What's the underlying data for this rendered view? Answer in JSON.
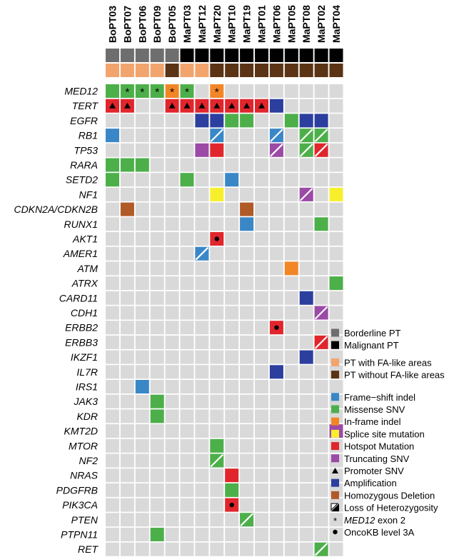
{
  "chart_data": {
    "type": "heatmap",
    "title": "",
    "samples": [
      "BoPT03",
      "BoPT07",
      "BoPT06",
      "BoPT09",
      "BoPT05",
      "MaPT03",
      "MaPT12",
      "MaPT20",
      "MaPT10",
      "MaPT19",
      "MaPT01",
      "MaPT06",
      "MaPT05",
      "MaPT08",
      "MaPT02",
      "MaPT04"
    ],
    "sample_type": [
      "Borderline PT",
      "Borderline PT",
      "Borderline PT",
      "Borderline PT",
      "Borderline PT",
      "Malignant PT",
      "Malignant PT",
      "Malignant PT",
      "Malignant PT",
      "Malignant PT",
      "Malignant PT",
      "Malignant PT",
      "Malignant PT",
      "Malignant PT",
      "Malignant PT",
      "Malignant PT"
    ],
    "fa_status": [
      "PT with FA-like areas",
      "PT with FA-like areas",
      "PT with FA-like areas",
      "PT with FA-like areas",
      "PT without FA-like areas",
      "PT with FA-like areas",
      "PT with FA-like areas",
      "PT without FA-like areas",
      "PT without FA-like areas",
      "PT without FA-like areas",
      "PT without FA-like areas",
      "PT without FA-like areas",
      "PT without FA-like areas",
      "PT without FA-like areas",
      "PT without FA-like areas",
      "PT without FA-like areas"
    ],
    "genes": [
      "MED12",
      "TERT",
      "EGFR",
      "RB1",
      "TP53",
      "RARA",
      "SETD2",
      "NF1",
      "CDKN2A/CDKN2B",
      "RUNX1",
      "AKT1",
      "AMER1",
      "ATM",
      "ATRX",
      "CARD11",
      "CDH1",
      "ERBB2",
      "ERBB3",
      "IKZF1",
      "IL7R",
      "IRS1",
      "JAK3",
      "KDR",
      "KMT2D",
      "MTOR",
      "NF2",
      "NRAS",
      "PDGFRB",
      "PIK3CA",
      "PTEN",
      "PTPN11",
      "RET"
    ],
    "alterations": [
      {
        "gene": "MED12",
        "sample": "BoPT03",
        "type": "Missense SNV"
      },
      {
        "gene": "MED12",
        "sample": "BoPT07",
        "type": "Missense SNV",
        "mark": "*"
      },
      {
        "gene": "MED12",
        "sample": "BoPT06",
        "type": "Missense SNV",
        "mark": "*"
      },
      {
        "gene": "MED12",
        "sample": "BoPT09",
        "type": "Missense SNV",
        "mark": "*"
      },
      {
        "gene": "MED12",
        "sample": "BoPT05",
        "type": "In-frame indel",
        "mark": "*"
      },
      {
        "gene": "MED12",
        "sample": "MaPT03",
        "type": "Missense SNV",
        "mark": "*"
      },
      {
        "gene": "MED12",
        "sample": "MaPT20",
        "type": "In-frame indel",
        "mark": "*"
      },
      {
        "gene": "TERT",
        "sample": "BoPT03",
        "type": "Hotspot Mutation",
        "mark": "▲"
      },
      {
        "gene": "TERT",
        "sample": "BoPT07",
        "type": "Hotspot Mutation",
        "mark": "▲"
      },
      {
        "gene": "TERT",
        "sample": "BoPT05",
        "type": "Hotspot Mutation",
        "mark": "▲"
      },
      {
        "gene": "TERT",
        "sample": "MaPT03",
        "type": "Hotspot Mutation",
        "mark": "▲"
      },
      {
        "gene": "TERT",
        "sample": "MaPT12",
        "type": "Hotspot Mutation",
        "mark": "▲"
      },
      {
        "gene": "TERT",
        "sample": "MaPT20",
        "type": "Hotspot Mutation",
        "mark": "▲"
      },
      {
        "gene": "TERT",
        "sample": "MaPT10",
        "type": "Hotspot Mutation",
        "mark": "▲"
      },
      {
        "gene": "TERT",
        "sample": "MaPT19",
        "type": "Hotspot Mutation",
        "mark": "▲"
      },
      {
        "gene": "TERT",
        "sample": "MaPT01",
        "type": "Hotspot Mutation",
        "mark": "▲"
      },
      {
        "gene": "TERT",
        "sample": "MaPT06",
        "type": "Amplification"
      },
      {
        "gene": "EGFR",
        "sample": "MaPT12",
        "type": "Amplification"
      },
      {
        "gene": "EGFR",
        "sample": "MaPT20",
        "type": "Amplification"
      },
      {
        "gene": "EGFR",
        "sample": "MaPT10",
        "type": "Missense SNV"
      },
      {
        "gene": "EGFR",
        "sample": "MaPT19",
        "type": "Missense SNV"
      },
      {
        "gene": "EGFR",
        "sample": "MaPT05",
        "type": "Missense SNV"
      },
      {
        "gene": "EGFR",
        "sample": "MaPT08",
        "type": "Amplification"
      },
      {
        "gene": "EGFR",
        "sample": "MaPT02",
        "type": "Amplification"
      },
      {
        "gene": "RB1",
        "sample": "BoPT03",
        "type": "Frame-shift indel"
      },
      {
        "gene": "RB1",
        "sample": "MaPT20",
        "type": "Frame-shift indel",
        "loh": true
      },
      {
        "gene": "RB1",
        "sample": "MaPT06",
        "type": "Frame-shift indel",
        "loh": true
      },
      {
        "gene": "RB1",
        "sample": "MaPT08",
        "type": "Missense SNV",
        "loh": true
      },
      {
        "gene": "RB1",
        "sample": "MaPT02",
        "type": "Missense SNV",
        "loh": true
      },
      {
        "gene": "TP53",
        "sample": "MaPT12",
        "type": "Truncating SNV"
      },
      {
        "gene": "TP53",
        "sample": "MaPT20",
        "type": "Hotspot Mutation"
      },
      {
        "gene": "TP53",
        "sample": "MaPT06",
        "type": "Truncating SNV",
        "loh": true
      },
      {
        "gene": "TP53",
        "sample": "MaPT08",
        "type": "Missense SNV",
        "loh": true
      },
      {
        "gene": "TP53",
        "sample": "MaPT02",
        "type": "Hotspot Mutation",
        "loh": true
      },
      {
        "gene": "RARA",
        "sample": "BoPT03",
        "type": "Missense SNV"
      },
      {
        "gene": "RARA",
        "sample": "BoPT07",
        "type": "Missense SNV"
      },
      {
        "gene": "RARA",
        "sample": "BoPT06",
        "type": "Missense SNV"
      },
      {
        "gene": "SETD2",
        "sample": "BoPT03",
        "type": "Missense SNV"
      },
      {
        "gene": "SETD2",
        "sample": "MaPT03",
        "type": "Missense SNV"
      },
      {
        "gene": "SETD2",
        "sample": "MaPT10",
        "type": "Frame-shift indel"
      },
      {
        "gene": "NF1",
        "sample": "MaPT20",
        "type": "Splice site mutation"
      },
      {
        "gene": "NF1",
        "sample": "MaPT08",
        "type": "Truncating SNV",
        "loh": true
      },
      {
        "gene": "NF1",
        "sample": "MaPT04",
        "type": "Splice site mutation"
      },
      {
        "gene": "CDKN2A/CDKN2B",
        "sample": "BoPT07",
        "type": "Homozygous Deletion"
      },
      {
        "gene": "CDKN2A/CDKN2B",
        "sample": "MaPT19",
        "type": "Homozygous Deletion"
      },
      {
        "gene": "RUNX1",
        "sample": "MaPT19",
        "type": "Frame-shift indel"
      },
      {
        "gene": "RUNX1",
        "sample": "MaPT02",
        "type": "Missense SNV"
      },
      {
        "gene": "AKT1",
        "sample": "MaPT20",
        "type": "Hotspot Mutation",
        "mark": "●"
      },
      {
        "gene": "AMER1",
        "sample": "MaPT12",
        "type": "Frame-shift indel",
        "loh": true
      },
      {
        "gene": "ATM",
        "sample": "MaPT05",
        "type": "In-frame indel"
      },
      {
        "gene": "ATRX",
        "sample": "MaPT04",
        "type": "Missense SNV"
      },
      {
        "gene": "CARD11",
        "sample": "MaPT08",
        "type": "Amplification"
      },
      {
        "gene": "CDH1",
        "sample": "MaPT02",
        "type": "Truncating SNV",
        "loh": true
      },
      {
        "gene": "ERBB2",
        "sample": "MaPT06",
        "type": "Hotspot Mutation",
        "mark": "●"
      },
      {
        "gene": "ERBB3",
        "sample": "MaPT02",
        "type": "Hotspot Mutation",
        "loh": true
      },
      {
        "gene": "IKZF1",
        "sample": "MaPT08",
        "type": "Amplification"
      },
      {
        "gene": "IL7R",
        "sample": "MaPT06",
        "type": "Amplification"
      },
      {
        "gene": "IRS1",
        "sample": "BoPT06",
        "type": "Frame-shift indel"
      },
      {
        "gene": "JAK3",
        "sample": "BoPT09",
        "type": "Missense SNV"
      },
      {
        "gene": "KDR",
        "sample": "BoPT09",
        "type": "Missense SNV"
      },
      {
        "gene": "KMT2D",
        "sample": "MaPT04",
        "type": "Truncating SNV"
      },
      {
        "gene": "MTOR",
        "sample": "MaPT20",
        "type": "Missense SNV"
      },
      {
        "gene": "NF2",
        "sample": "MaPT20",
        "type": "Missense SNV",
        "loh": true
      },
      {
        "gene": "NRAS",
        "sample": "MaPT10",
        "type": "Hotspot Mutation"
      },
      {
        "gene": "PDGFRB",
        "sample": "MaPT10",
        "type": "Missense SNV"
      },
      {
        "gene": "PIK3CA",
        "sample": "MaPT10",
        "type": "Hotspot Mutation",
        "mark": "●"
      },
      {
        "gene": "PTEN",
        "sample": "MaPT19",
        "type": "Missense SNV",
        "loh": true
      },
      {
        "gene": "PTPN11",
        "sample": "BoPT09",
        "type": "Missense SNV"
      },
      {
        "gene": "RET",
        "sample": "MaPT02",
        "type": "Missense SNV",
        "loh": true
      }
    ],
    "colors": {
      "empty": "#d9d9d9",
      "Borderline PT": "#6e6e6e",
      "Malignant PT": "#000000",
      "PT with FA-like areas": "#f2a46d",
      "PT without FA-like areas": "#5a3414",
      "Frame-shift indel": "#3a87c8",
      "Missense SNV": "#4daf4a",
      "In-frame indel": "#f28627",
      "Splice site mutation": "#f7ef2c",
      "Hotspot Mutation": "#e0262c",
      "Truncating SNV": "#9b4aa6",
      "Amplification": "#2c3f9e",
      "Homozygous Deletion": "#b05a28"
    },
    "legend": {
      "groups": [
        [
          {
            "label": "Borderline PT",
            "kind": "square",
            "color_key": "Borderline PT"
          },
          {
            "label": "Malignant PT",
            "kind": "square",
            "color_key": "Malignant PT"
          }
        ],
        [
          {
            "label": "PT with FA-like areas",
            "kind": "square",
            "color_key": "PT with FA-like areas"
          },
          {
            "label": "PT without FA-like areas",
            "kind": "square",
            "color_key": "PT without FA-like areas"
          }
        ],
        [
          {
            "label": "Frame−shift indel",
            "kind": "square",
            "color_key": "Frame-shift indel"
          },
          {
            "label": "Missense SNV",
            "kind": "square",
            "color_key": "Missense SNV"
          },
          {
            "label": "In-frame indel",
            "kind": "square",
            "color_key": "In-frame indel"
          },
          {
            "label": "Splice site mutation",
            "kind": "square",
            "color_key": "Splice site mutation"
          },
          {
            "label": "Hotspot Mutation",
            "kind": "square",
            "color_key": "Hotspot Mutation"
          },
          {
            "label": "Truncating SNV",
            "kind": "square",
            "color_key": "Truncating SNV"
          },
          {
            "label": "Promoter SNV",
            "kind": "triangle"
          },
          {
            "label": "Amplification",
            "kind": "square",
            "color_key": "Amplification"
          },
          {
            "label": "Homozygous Deletion",
            "kind": "square",
            "color_key": "Homozygous Deletion"
          },
          {
            "label": "Loss of Heterozygosity",
            "kind": "loh"
          },
          {
            "label": "MED12 exon 2",
            "kind": "asterisk",
            "italic_part": "MED12"
          },
          {
            "label": "OncoKB level 3A",
            "kind": "dot"
          }
        ]
      ]
    }
  }
}
